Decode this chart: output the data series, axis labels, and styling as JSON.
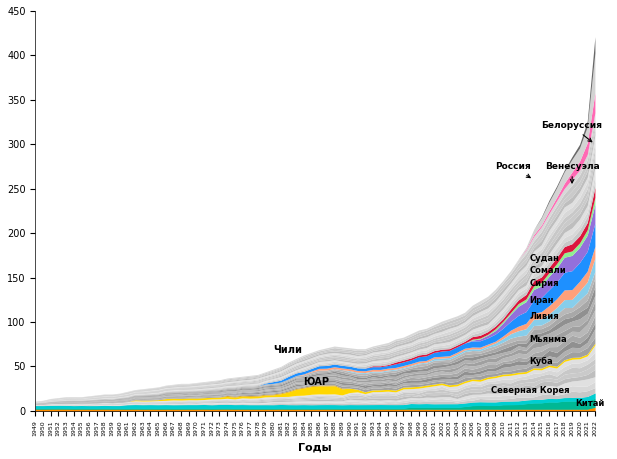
{
  "years": [
    1949,
    1950,
    1951,
    1952,
    1953,
    1954,
    1955,
    1956,
    1957,
    1958,
    1959,
    1960,
    1961,
    1962,
    1963,
    1964,
    1965,
    1966,
    1967,
    1968,
    1969,
    1970,
    1971,
    1972,
    1973,
    1974,
    1975,
    1976,
    1977,
    1978,
    1979,
    1980,
    1981,
    1982,
    1983,
    1984,
    1985,
    1986,
    1987,
    1988,
    1989,
    1990,
    1991,
    1992,
    1993,
    1994,
    1995,
    1996,
    1997,
    1998,
    1999,
    2000,
    2001,
    2002,
    2003,
    2004,
    2005,
    2006,
    2007,
    2008,
    2009,
    2010,
    2011,
    2012,
    2013,
    2014,
    2015,
    2016,
    2017,
    2018,
    2019,
    2020,
    2021,
    2022
  ],
  "xlabel": "Годы",
  "ylim": [
    0,
    450
  ],
  "yticks": [
    0,
    50,
    100,
    150,
    200,
    250,
    300,
    350,
    400,
    450
  ],
  "china": [
    2,
    2,
    2,
    2,
    2,
    2,
    2,
    2,
    2,
    2,
    2,
    2,
    2,
    2,
    2,
    2,
    2,
    2,
    2,
    2,
    2,
    2,
    2,
    2,
    2,
    2,
    2,
    2,
    2,
    2,
    2,
    2,
    2,
    2,
    2,
    2,
    2,
    2,
    2,
    2,
    2,
    2,
    2,
    2,
    2,
    2,
    2,
    2,
    2,
    2,
    2,
    2,
    2,
    2,
    2,
    2,
    2,
    2,
    2,
    2,
    2,
    2,
    2,
    2,
    2,
    2,
    2,
    2,
    2,
    2,
    2,
    2,
    2,
    4
  ],
  "nkorea": [
    1,
    1,
    1,
    1,
    1,
    1,
    1,
    1,
    1,
    1,
    1,
    1,
    1,
    1,
    1,
    1,
    1,
    1,
    1,
    1,
    1,
    1,
    1,
    1,
    1,
    1,
    1,
    1,
    1,
    1,
    1,
    1,
    1,
    1,
    1,
    1,
    1,
    1,
    1,
    1,
    1,
    1,
    1,
    1,
    1,
    1,
    1,
    1,
    1,
    2,
    2,
    2,
    2,
    2,
    2,
    2,
    3,
    4,
    4,
    4,
    4,
    5,
    5,
    5,
    6,
    7,
    7,
    8,
    8,
    9,
    9,
    9,
    9,
    10
  ],
  "cuba": [
    3,
    3,
    3,
    3,
    3,
    3,
    3,
    3,
    3,
    3,
    3,
    3,
    4,
    4,
    4,
    4,
    4,
    4,
    4,
    4,
    4,
    4,
    4,
    4,
    4,
    4,
    4,
    4,
    4,
    4,
    4,
    4,
    4,
    4,
    4,
    4,
    4,
    4,
    4,
    4,
    4,
    4,
    4,
    4,
    4,
    4,
    4,
    4,
    4,
    4,
    4,
    4,
    4,
    4,
    4,
    4,
    4,
    4,
    4,
    4,
    4,
    4,
    4,
    4,
    4,
    4,
    4,
    4,
    4,
    4,
    4,
    4,
    5,
    6
  ],
  "myanmar": [
    0,
    0,
    0,
    0,
    0,
    0,
    0,
    0,
    0,
    0,
    0,
    0,
    0,
    0,
    0,
    0,
    0,
    0,
    0,
    0,
    0,
    0,
    0,
    0,
    0,
    0,
    0,
    0,
    0,
    0,
    0,
    0,
    0,
    0,
    0,
    0,
    0,
    0,
    0,
    0,
    0,
    1,
    1,
    1,
    1,
    1,
    1,
    1,
    1,
    1,
    1,
    1,
    2,
    2,
    2,
    2,
    2,
    2,
    2,
    2,
    3,
    4,
    5,
    6,
    7,
    7,
    7,
    8,
    8,
    9,
    9,
    10,
    12,
    15
  ],
  "libya": [
    0,
    0,
    0,
    0,
    0,
    0,
    0,
    0,
    0,
    0,
    0,
    0,
    0,
    0,
    0,
    0,
    0,
    0,
    0,
    0,
    0,
    0,
    0,
    0,
    0,
    0,
    0,
    0,
    0,
    0,
    0,
    0,
    0,
    0,
    0,
    1,
    1,
    2,
    2,
    2,
    2,
    2,
    2,
    2,
    2,
    2,
    2,
    2,
    2,
    2,
    2,
    2,
    2,
    2,
    2,
    2,
    2,
    2,
    2,
    2,
    2,
    3,
    4,
    5,
    6,
    7,
    8,
    9,
    10,
    11,
    11,
    11,
    12,
    13
  ],
  "iran": [
    0,
    0,
    0,
    0,
    0,
    0,
    0,
    0,
    0,
    0,
    0,
    0,
    0,
    0,
    0,
    0,
    0,
    0,
    0,
    0,
    0,
    0,
    0,
    0,
    0,
    0,
    0,
    0,
    0,
    0,
    1,
    2,
    2,
    3,
    3,
    3,
    3,
    3,
    3,
    3,
    3,
    3,
    3,
    3,
    3,
    3,
    3,
    4,
    4,
    4,
    5,
    5,
    5,
    6,
    6,
    6,
    6,
    7,
    7,
    7,
    8,
    9,
    10,
    12,
    13,
    15,
    16,
    18,
    19,
    20,
    21,
    21,
    22,
    26
  ],
  "syria": [
    0,
    0,
    0,
    0,
    0,
    0,
    0,
    0,
    0,
    0,
    0,
    0,
    0,
    0,
    0,
    0,
    0,
    0,
    0,
    0,
    0,
    0,
    0,
    0,
    0,
    0,
    0,
    0,
    0,
    0,
    0,
    0,
    0,
    0,
    0,
    0,
    0,
    0,
    0,
    0,
    0,
    0,
    0,
    0,
    0,
    0,
    0,
    0,
    0,
    0,
    0,
    0,
    0,
    0,
    0,
    0,
    0,
    1,
    2,
    3,
    4,
    6,
    8,
    10,
    11,
    12,
    13,
    15,
    16,
    17,
    17,
    17,
    18,
    21
  ],
  "somalia": [
    0,
    0,
    0,
    0,
    0,
    0,
    0,
    0,
    0,
    0,
    0,
    0,
    0,
    0,
    0,
    0,
    0,
    0,
    0,
    0,
    0,
    0,
    0,
    0,
    0,
    0,
    0,
    0,
    0,
    0,
    0,
    0,
    0,
    0,
    0,
    0,
    0,
    0,
    0,
    0,
    0,
    0,
    0,
    0,
    0,
    0,
    0,
    0,
    0,
    0,
    0,
    0,
    0,
    0,
    0,
    0,
    0,
    1,
    1,
    1,
    2,
    2,
    2,
    3,
    3,
    4,
    4,
    4,
    5,
    5,
    5,
    5,
    6,
    8
  ],
  "sudan": [
    0,
    0,
    0,
    0,
    0,
    0,
    0,
    0,
    0,
    0,
    0,
    0,
    0,
    0,
    0,
    0,
    0,
    0,
    0,
    0,
    0,
    0,
    0,
    0,
    0,
    0,
    0,
    0,
    0,
    0,
    0,
    0,
    0,
    0,
    0,
    0,
    0,
    0,
    0,
    0,
    0,
    0,
    0,
    0,
    1,
    1,
    1,
    2,
    2,
    2,
    2,
    2,
    2,
    2,
    2,
    2,
    2,
    3,
    3,
    3,
    3,
    3,
    4,
    4,
    5,
    6,
    6,
    6,
    7,
    7,
    8,
    8,
    8,
    11
  ],
  "venezuela": [
    0,
    0,
    0,
    0,
    0,
    0,
    0,
    0,
    0,
    0,
    0,
    0,
    0,
    0,
    0,
    0,
    0,
    0,
    0,
    0,
    0,
    0,
    0,
    0,
    0,
    0,
    0,
    0,
    0,
    0,
    0,
    0,
    0,
    0,
    0,
    0,
    0,
    0,
    0,
    0,
    0,
    0,
    0,
    0,
    0,
    0,
    0,
    0,
    0,
    0,
    0,
    0,
    0,
    0,
    0,
    0,
    0,
    0,
    0,
    0,
    0,
    0,
    0,
    0,
    1,
    2,
    2,
    3,
    4,
    6,
    8,
    10,
    13,
    22
  ],
  "russia": [
    0,
    0,
    0,
    0,
    0,
    0,
    0,
    0,
    0,
    0,
    0,
    0,
    0,
    0,
    0,
    0,
    0,
    0,
    0,
    0,
    0,
    0,
    0,
    0,
    0,
    0,
    0,
    0,
    0,
    0,
    0,
    0,
    0,
    0,
    0,
    0,
    0,
    0,
    0,
    0,
    0,
    0,
    0,
    0,
    0,
    0,
    0,
    0,
    0,
    0,
    0,
    0,
    0,
    0,
    0,
    0,
    0,
    0,
    0,
    0,
    0,
    0,
    0,
    1,
    2,
    6,
    8,
    10,
    11,
    13,
    14,
    15,
    18,
    45
  ],
  "belarus": [
    0,
    0,
    0,
    0,
    0,
    0,
    0,
    0,
    0,
    0,
    0,
    0,
    0,
    0,
    0,
    0,
    0,
    0,
    0,
    0,
    0,
    0,
    0,
    0,
    0,
    0,
    0,
    0,
    0,
    0,
    0,
    0,
    0,
    0,
    0,
    0,
    0,
    0,
    0,
    0,
    0,
    0,
    0,
    0,
    0,
    0,
    0,
    0,
    0,
    0,
    0,
    0,
    0,
    0,
    0,
    0,
    0,
    0,
    0,
    0,
    0,
    0,
    0,
    0,
    0,
    0,
    1,
    2,
    2,
    2,
    3,
    4,
    6,
    18
  ],
  "sar": [
    0,
    0,
    0,
    0,
    0,
    0,
    0,
    0,
    0,
    0,
    0,
    0,
    0,
    1,
    1,
    1,
    1,
    2,
    2,
    2,
    2,
    2,
    2,
    2,
    2,
    2,
    2,
    2,
    2,
    2,
    2,
    2,
    3,
    5,
    7,
    8,
    9,
    9,
    9,
    9,
    7,
    5,
    3,
    2,
    2,
    2,
    2,
    2,
    2,
    2,
    2,
    2,
    2,
    2,
    2,
    2,
    2,
    2,
    2,
    2,
    2,
    2,
    2,
    2,
    2,
    2,
    2,
    2,
    2,
    2,
    2,
    2,
    2,
    2
  ],
  "chile": [
    0,
    0,
    0,
    0,
    0,
    0,
    0,
    0,
    0,
    0,
    0,
    0,
    0,
    0,
    0,
    0,
    0,
    0,
    0,
    0,
    0,
    0,
    0,
    0,
    0,
    1,
    1,
    1,
    1,
    1,
    1,
    1,
    1,
    1,
    1,
    1,
    1,
    1,
    1,
    1,
    1,
    0,
    0,
    0,
    0,
    0,
    0,
    0,
    0,
    0,
    0,
    0,
    0,
    0,
    0,
    0,
    0,
    0,
    0,
    0,
    0,
    0,
    0,
    0,
    0,
    0,
    0,
    0,
    0,
    0,
    0,
    0,
    0,
    0
  ],
  "colors_china": "#FF8C00",
  "colors_nkorea": "#00B894",
  "colors_cuba": "#00CED1",
  "colors_myanmar": "#87CEEB",
  "colors_libya": "#FFA07A",
  "colors_iran": "#1E90FF",
  "colors_syria": "#9370DB",
  "colors_somalia": "#90EE90",
  "colors_sudan": "#DC143C",
  "colors_venezuela": "#FF69B4",
  "colors_russia": "#D3D3D3",
  "colors_belarus": "#696969",
  "colors_sar": "#FFD700",
  "colors_chile": "#DAA520",
  "n_gray_thin": 30,
  "gray_total": [
    5,
    6,
    8,
    9,
    10,
    10,
    10,
    11,
    12,
    13,
    13,
    14,
    15,
    16,
    17,
    18,
    19,
    20,
    21,
    22,
    22,
    23,
    24,
    25,
    26,
    27,
    28,
    29,
    30,
    31,
    33,
    35,
    37,
    39,
    41,
    43,
    45,
    47,
    49,
    51,
    52,
    53,
    54,
    55,
    57,
    59,
    61,
    63,
    65,
    68,
    71,
    73,
    76,
    79,
    82,
    85,
    88,
    91,
    95,
    99,
    103,
    107,
    112,
    117,
    122,
    130,
    138,
    146,
    155,
    164,
    173,
    182,
    193,
    220
  ]
}
